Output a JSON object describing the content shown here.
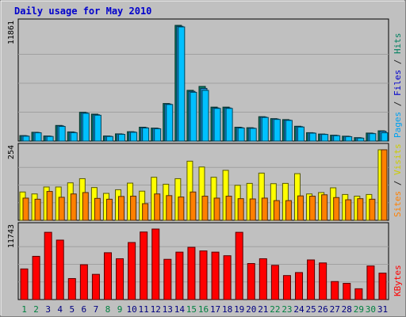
{
  "chart_data": {
    "type": "bar",
    "title": "Daily usage for May 2010",
    "categories": [
      "1",
      "2",
      "3",
      "4",
      "5",
      "6",
      "7",
      "8",
      "9",
      "10",
      "11",
      "12",
      "13",
      "14",
      "15",
      "16",
      "17",
      "18",
      "19",
      "20",
      "21",
      "22",
      "23",
      "24",
      "25",
      "26",
      "27",
      "28",
      "29",
      "30",
      "31"
    ],
    "weekend_days": [
      "1",
      "2",
      "8",
      "9",
      "15",
      "16",
      "22",
      "23",
      "29",
      "30"
    ],
    "panels": [
      {
        "name": "hits-files-pages",
        "ymax_label": "11861",
        "ymax": 11861,
        "right_labels": [
          {
            "text": "Pages",
            "color": "#00a0f0"
          },
          {
            "text": " / ",
            "color": "#222222"
          },
          {
            "text": "Files",
            "color": "#0000cc"
          },
          {
            "text": " / ",
            "color": "#222222"
          },
          {
            "text": "Hits",
            "color": "#008060"
          }
        ],
        "series": [
          {
            "name": "Hits",
            "color": "#00806a",
            "values": [
              560,
              900,
              520,
              1600,
              940,
              2950,
              2760,
              520,
              740,
              960,
              1420,
              1330,
              3850,
              11861,
              5200,
              5600,
              3480,
              3480,
              1420,
              1370,
              2500,
              2300,
              2200,
              1520,
              860,
              720,
              600,
              500,
              350,
              820,
              1050
            ]
          },
          {
            "name": "Files",
            "color": "#1a8fd8",
            "values": [
              540,
              880,
              500,
              1560,
              900,
              2900,
              2700,
              500,
              720,
              940,
              1380,
              1300,
              3800,
              11761,
              5100,
              5400,
              3400,
              3400,
              1380,
              1330,
              2460,
              2260,
              2150,
              1480,
              840,
              700,
              580,
              480,
              330,
              790,
              1010
            ]
          },
          {
            "name": "Pages",
            "color": "#00c0ff",
            "values": [
              500,
              850,
              470,
              1500,
              860,
              2850,
              2650,
              470,
              690,
              900,
              1340,
              1260,
              3750,
              11700,
              5000,
              5200,
              3350,
              3350,
              1340,
              1300,
              2420,
              2220,
              2120,
              1440,
              810,
              680,
              550,
              450,
              300,
              760,
              850
            ]
          }
        ]
      },
      {
        "name": "visits-sites",
        "ymax_label": "254",
        "ymax": 254,
        "right_labels": [
          {
            "text": "Sites",
            "color": "#ff8000"
          },
          {
            "text": " / ",
            "color": "#222222"
          },
          {
            "text": "Visits",
            "color": "#cccc00"
          }
        ],
        "series": [
          {
            "name": "Visits",
            "color": "#ffff00",
            "values": [
              102,
              95,
              120,
              120,
              135,
              150,
              118,
              97,
              110,
              134,
              105,
              155,
              130,
              150,
              213,
              192,
              155,
              180,
              126,
              133,
              170,
              132,
              133,
              168,
              95,
              100,
              117,
              93,
              87,
              93,
              254
            ]
          },
          {
            "name": "Sites",
            "color": "#ff8000",
            "values": [
              80,
              76,
              104,
              83,
              95,
              100,
              79,
              76,
              86,
              87,
              60,
              95,
              89,
              84,
              102,
              87,
              80,
              87,
              78,
              77,
              80,
              71,
              71,
              88,
              87,
              92,
              82,
              74,
              78,
              76,
              254
            ]
          }
        ]
      },
      {
        "name": "kbytes",
        "ymax_label": "11743",
        "ymax": 11743,
        "right_labels": [
          {
            "text": "KBytes",
            "color": "#ff0000"
          }
        ],
        "series": [
          {
            "name": "KBytes",
            "color": "#ff0000",
            "values": [
              5100,
              7200,
              11200,
              9900,
              3500,
              5800,
              4200,
              7800,
              6800,
              9500,
              11250,
              11743,
              6700,
              7900,
              8700,
              8100,
              7900,
              7300,
              11200,
              6000,
              6800,
              5700,
              4000,
              4500,
              6600,
              6100,
              3000,
              2700,
              1800,
              5600,
              4400
            ]
          }
        ]
      }
    ]
  }
}
